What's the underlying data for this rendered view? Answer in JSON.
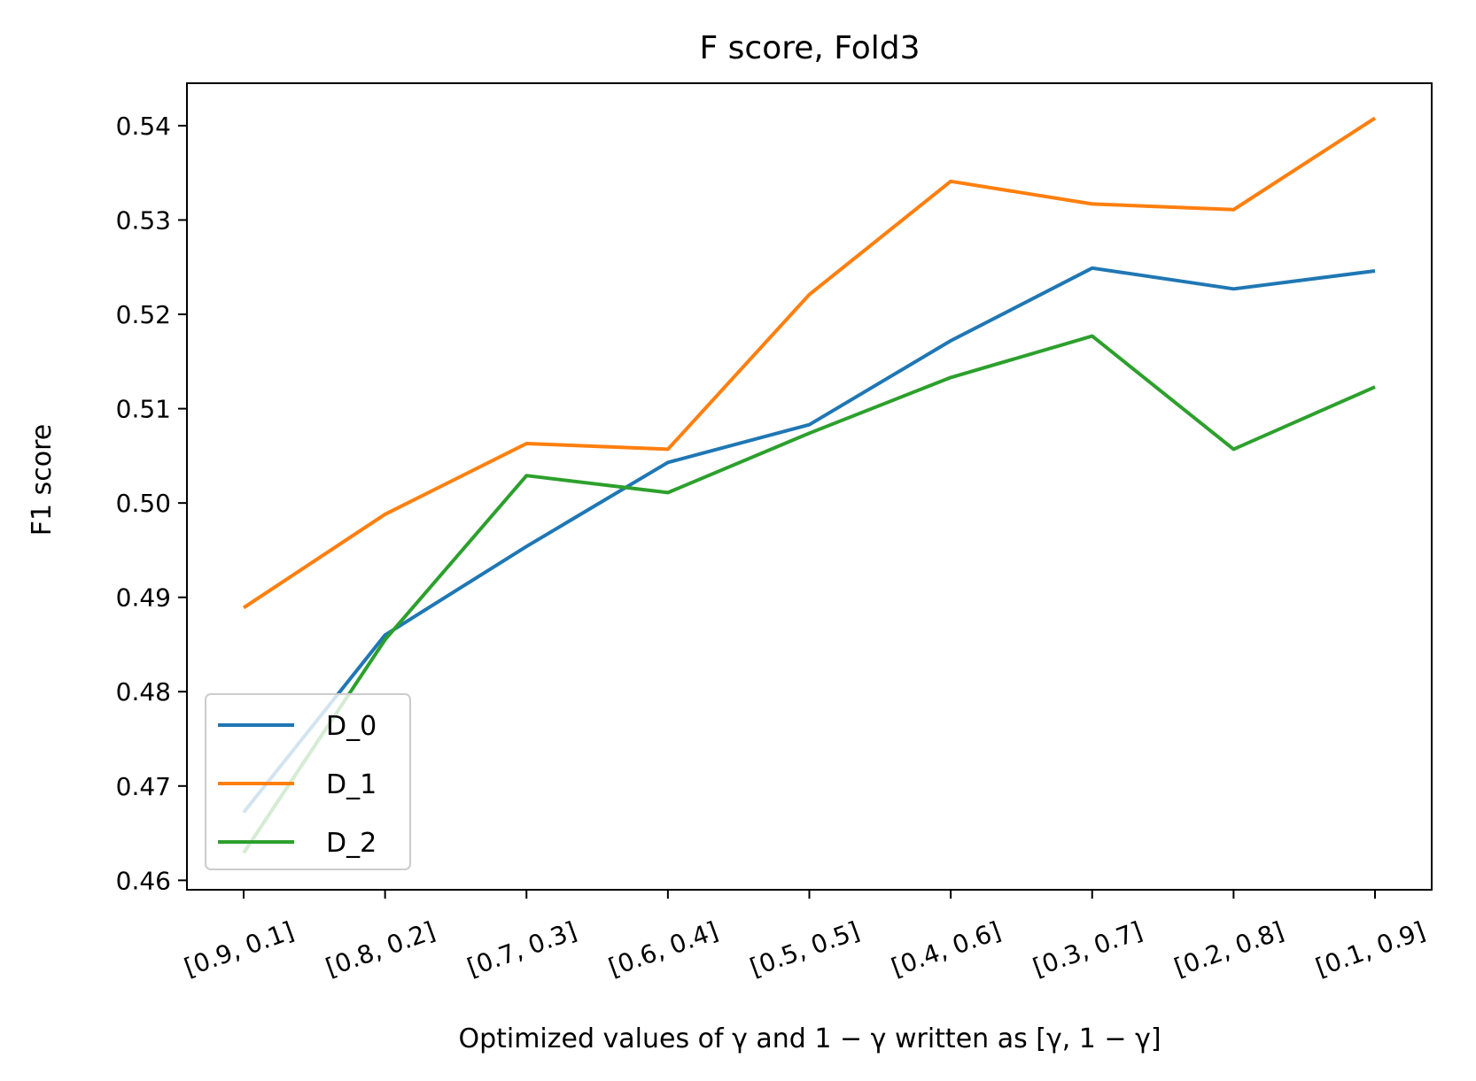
{
  "chart_data": {
    "type": "line",
    "title": "F score, Fold3",
    "xlabel": "Optimized values of γ and 1 − γ written as [γ, 1 − γ]",
    "ylabel": "F1 score",
    "categories": [
      "[0.9, 0.1]",
      "[0.8, 0.2]",
      "[0.7, 0.3]",
      "[0.6, 0.4]",
      "[0.5, 0.5]",
      "[0.4, 0.6]",
      "[0.3, 0.7]",
      "[0.2, 0.8]",
      "[0.1, 0.9]"
    ],
    "ylim": [
      0.459,
      0.5445
    ],
    "yticks": [
      0.46,
      0.47,
      0.48,
      0.49,
      0.5,
      0.51,
      0.52,
      0.53,
      0.54
    ],
    "ytick_labels": [
      "0.46",
      "0.47",
      "0.48",
      "0.49",
      "0.50",
      "0.51",
      "0.52",
      "0.53",
      "0.54"
    ],
    "grid": false,
    "legend_position": "lower-left",
    "series": [
      {
        "name": "D_0",
        "color": "#1f77b4",
        "values": [
          0.4672,
          0.486,
          0.4954,
          0.5043,
          0.5083,
          0.5172,
          0.5249,
          0.5227,
          0.5246
        ]
      },
      {
        "name": "D_1",
        "color": "#ff7f0e",
        "values": [
          0.4889,
          0.4988,
          0.5063,
          0.5057,
          0.5221,
          0.5341,
          0.5317,
          0.5311,
          0.5408
        ]
      },
      {
        "name": "D_2",
        "color": "#2ca02c",
        "values": [
          0.4629,
          0.4855,
          0.5029,
          0.5011,
          0.5074,
          0.5133,
          0.5177,
          0.5057,
          0.5123
        ]
      }
    ]
  }
}
